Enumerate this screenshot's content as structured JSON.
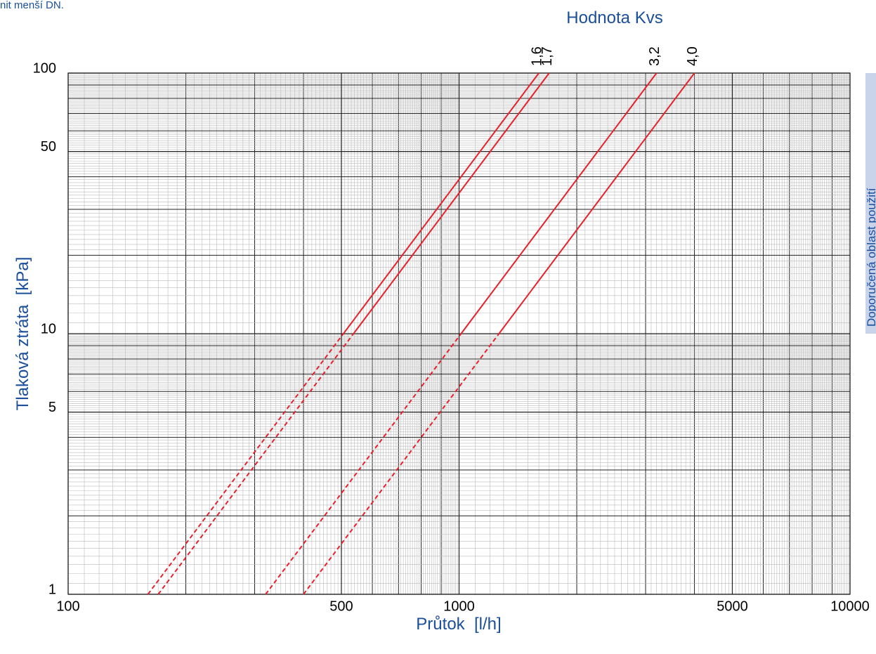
{
  "chart_data": {
    "type": "line",
    "title": "Hodnota Kvs",
    "note": "nit menší DN.",
    "side_label": "Doporučená oblast použití",
    "xlabel": "Průtok  [l/h]",
    "ylabel": "Tlaková ztráta  [kPa]",
    "xscale": "log",
    "yscale": "log",
    "xlim": [
      100,
      10000
    ],
    "ylim": [
      1,
      100
    ],
    "xticks": [
      100,
      500,
      1000,
      5000,
      10000
    ],
    "yticks": [
      1,
      5,
      10,
      50,
      100
    ],
    "grid": true,
    "series": [
      {
        "name": "1,6",
        "color": "#e8202a",
        "dashed": {
          "x": [
            160,
            506
          ],
          "values": [
            1,
            10
          ]
        },
        "solid": {
          "x": [
            506,
            1600
          ],
          "values": [
            10,
            100
          ]
        }
      },
      {
        "name": "1,7",
        "color": "#e8202a",
        "dashed": {
          "x": [
            170,
            537
          ],
          "values": [
            1,
            10
          ]
        },
        "solid": {
          "x": [
            537,
            1700
          ],
          "values": [
            10,
            100
          ]
        }
      },
      {
        "name": "3,2",
        "color": "#e8202a",
        "dashed": {
          "x": [
            320,
            1012
          ],
          "values": [
            1,
            10
          ]
        },
        "solid": {
          "x": [
            1012,
            3200
          ],
          "values": [
            10,
            100
          ]
        }
      },
      {
        "name": "4,0",
        "color": "#e8202a",
        "dashed": {
          "x": [
            400,
            1265
          ],
          "values": [
            1,
            10
          ]
        },
        "solid": {
          "x": [
            1265,
            4000
          ],
          "values": [
            10,
            100
          ]
        }
      }
    ]
  }
}
